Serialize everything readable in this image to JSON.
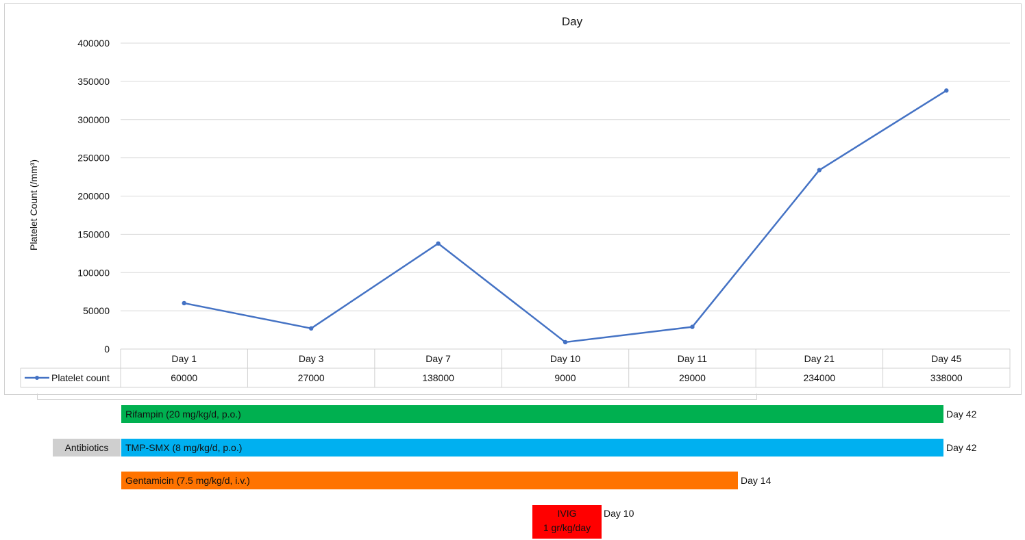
{
  "chart_data": {
    "type": "line",
    "title": "Day",
    "ylabel": "Platelet Count (/mm³)",
    "xlabel": "",
    "ylim": [
      0,
      400000
    ],
    "yticks": [
      0,
      50000,
      100000,
      150000,
      200000,
      250000,
      300000,
      350000,
      400000
    ],
    "ytick_labels": [
      "0",
      "50000",
      "100000",
      "150000",
      "200000",
      "250000",
      "300000",
      "350000",
      "400000"
    ],
    "grid": true,
    "categories": [
      "Day 1",
      "Day 3",
      "Day 7",
      "Day 10",
      "Day 11",
      "Day 21",
      "Day 45"
    ],
    "series": [
      {
        "name": "Platelet count",
        "values": [
          60000,
          27000,
          138000,
          9000,
          29000,
          234000,
          338000
        ],
        "value_labels": [
          "60000",
          "27000",
          "138000",
          "9000",
          "29000",
          "234000",
          "338000"
        ],
        "color": "#4472C4"
      }
    ],
    "data_table": true
  },
  "treatments": {
    "group_label": "Antibiotics",
    "bars": [
      {
        "label": "Rifampin (20 mg/kg/d, p.o.)",
        "end_label": "Day 42",
        "color": "#00B050"
      },
      {
        "label": "TMP-SMX (8 mg/kg/d, p.o.)",
        "end_label": "Day 42",
        "color": "#00B0F0"
      },
      {
        "label": "Gentamicin (7.5 mg/kg/d, i.v.)",
        "end_label": "Day 14",
        "color": "#FF7300"
      }
    ],
    "ivig": {
      "line1": "IVIG",
      "line2": "1 gr/kg/day",
      "end_label": "Day 10",
      "color": "#FF0000"
    }
  }
}
